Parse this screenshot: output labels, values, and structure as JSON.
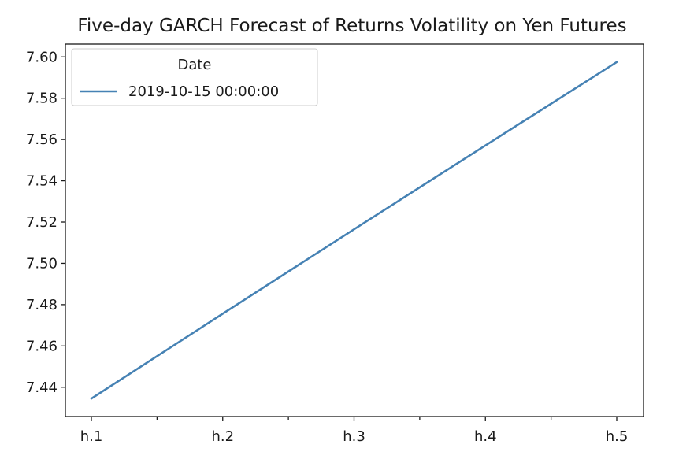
{
  "chart_data": {
    "type": "line",
    "title": "Five-day GARCH Forecast of Returns Volatility on Yen Futures",
    "xlabel": "",
    "ylabel": "",
    "categories": [
      "h.1",
      "h.2",
      "h.3",
      "h.4",
      "h.5"
    ],
    "minor_ticks_between": true,
    "series": [
      {
        "name": "2019-10-15 00:00:00",
        "color": "#4682b4",
        "values": [
          7.4345,
          7.4756,
          7.5165,
          7.5571,
          7.5975
        ]
      }
    ],
    "ylim": [
      7.4258,
      7.6062
    ],
    "yticks": [
      7.44,
      7.46,
      7.48,
      7.5,
      7.52,
      7.54,
      7.56,
      7.58,
      7.6
    ],
    "ytick_labels": [
      "7.44",
      "7.46",
      "7.48",
      "7.50",
      "7.52",
      "7.54",
      "7.56",
      "7.58",
      "7.60"
    ],
    "grid": false,
    "legend": {
      "title": "Date",
      "placement": "upper-left"
    }
  }
}
